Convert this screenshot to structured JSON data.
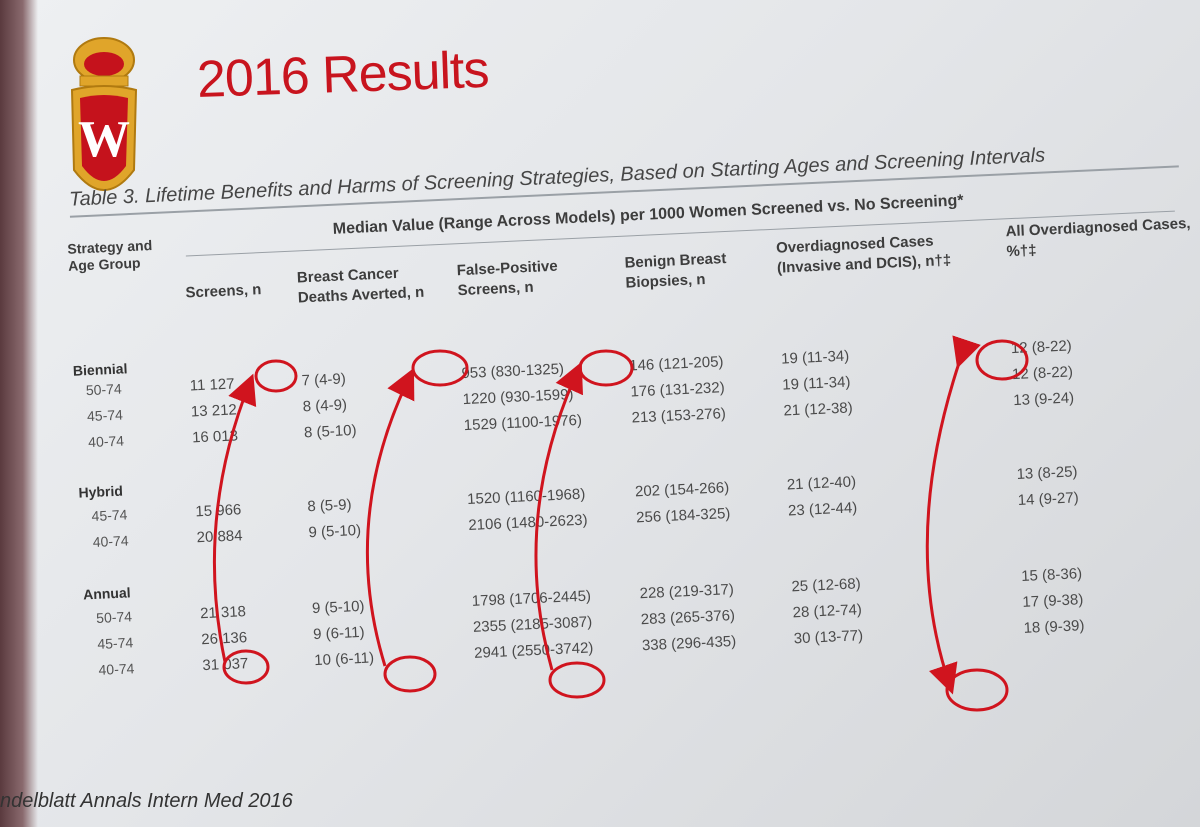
{
  "slide_title": "2016 Results",
  "table": {
    "caption": "Table 3. Lifetime Benefits and Harms of Screening Strategies, Based on Starting Ages and Screening Intervals",
    "span_header": "Median Value (Range Across Models) per 1000 Women Screened vs. No Screening*",
    "stub_header": "Strategy and Age Group",
    "columns": [
      "Screens, n",
      "Breast Cancer Deaths Averted, n",
      "False-Positive Screens, n",
      "Benign Breast Biopsies, n",
      "Overdiagnosed Cases (Invasive and DCIS), n†‡",
      "All Overdiagnosed Cases, %†‡"
    ],
    "groups": [
      {
        "name": "Biennial",
        "rows": [
          {
            "age": "50-74",
            "cells": [
              "11 127",
              "7 (4-9)",
              "953 (830-1325)",
              "146 (121-205)",
              "19 (11-34)",
              "12 (8-22)"
            ]
          },
          {
            "age": "45-74",
            "cells": [
              "13 212",
              "8 (4-9)",
              "1220 (930-1599)",
              "176 (131-232)",
              "19 (11-34)",
              "12 (8-22)"
            ]
          },
          {
            "age": "40-74",
            "cells": [
              "16 013",
              "8 (5-10)",
              "1529 (1100-1976)",
              "213 (153-276)",
              "21 (12-38)",
              "13 (9-24)"
            ]
          }
        ]
      },
      {
        "name": "Hybrid",
        "rows": [
          {
            "age": "45-74",
            "cells": [
              "15 966",
              "8 (5-9)",
              "1520 (1160-1968)",
              "202 (154-266)",
              "21 (12-40)",
              "13 (8-25)"
            ]
          },
          {
            "age": "40-74",
            "cells": [
              "20 884",
              "9 (5-10)",
              "2106 (1480-2623)",
              "256 (184-325)",
              "23 (12-44)",
              "14 (9-27)"
            ]
          }
        ]
      },
      {
        "name": "Annual",
        "rows": [
          {
            "age": "50-74",
            "cells": [
              "21 318",
              "9 (5-10)",
              "1798 (1706-2445)",
              "228 (219-317)",
              "25 (12-68)",
              "15 (8-36)"
            ]
          },
          {
            "age": "45-74",
            "cells": [
              "26 136",
              "9 (6-11)",
              "2355 (2185-3087)",
              "283 (265-376)",
              "28 (12-74)",
              "17 (9-38)"
            ]
          },
          {
            "age": "40-74",
            "cells": [
              "31 037",
              "10 (6-11)",
              "2941 (2550-3742)",
              "338 (296-435)",
              "30 (13-77)",
              "18 (9-39)"
            ]
          }
        ]
      }
    ]
  },
  "footer": "ndelblatt Annals Intern Med 2016",
  "colors": {
    "title": "#c8141e",
    "annotation": "#d0141e",
    "crest_red": "#c5121c",
    "crest_gold": "#e0a52a"
  },
  "icons": {
    "logo": "university-crest-icon"
  }
}
